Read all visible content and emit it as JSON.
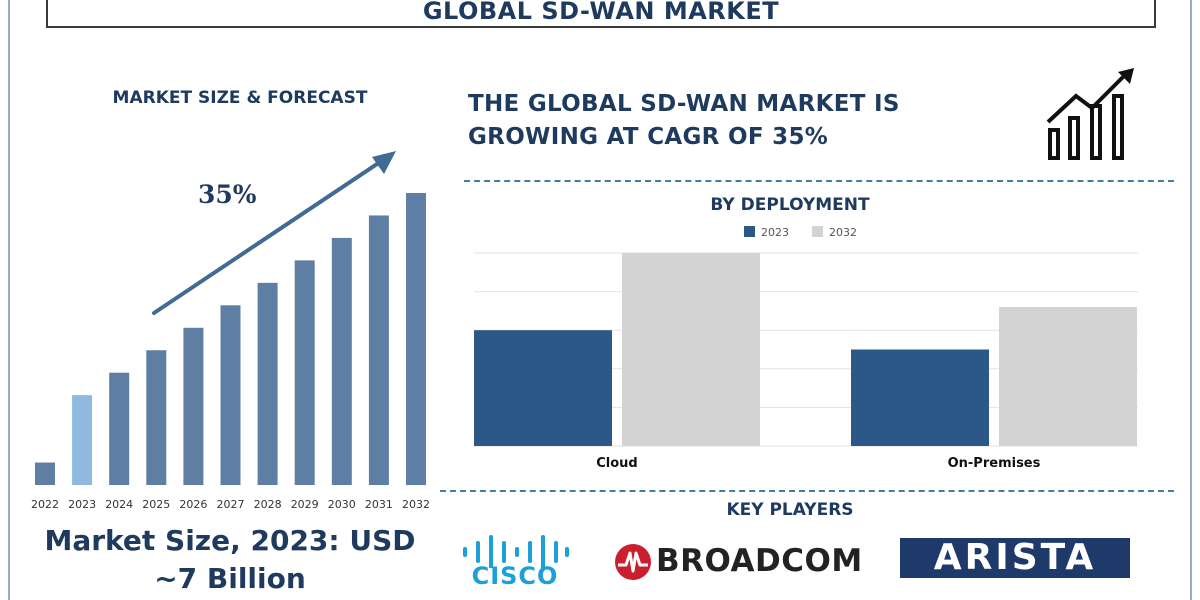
{
  "title": "GLOBAL SD-WAN MARKET",
  "forecast": {
    "title": "MARKET SIZE & FORECAST",
    "cagr_label": "35%",
    "market_size_line1": "Market Size, 2023: USD",
    "market_size_line2": "~7 Billion"
  },
  "headline_line1": "THE GLOBAL SD-WAN MARKET IS",
  "headline_line2": "GROWING AT CAGR OF 35%",
  "deployment_title": "BY DEPLOYMENT",
  "key_players_title": "KEY PLAYERS",
  "key_players": [
    "CISCO",
    "BROADCOM",
    "ARISTA"
  ],
  "icons": [
    "growth-chart-icon",
    "broadcom-logo-icon",
    "cisco-logo-icon"
  ],
  "colors": {
    "dark_blue": "#2b5887",
    "steel_blue": "#5e7fa3",
    "highlight_blue": "#8fb9de",
    "light_gray": "#d3d3d3",
    "navy_text": "#1f3a5f"
  },
  "chart_data": [
    {
      "type": "bar",
      "categories": [
        "2022",
        "2023",
        "2024",
        "2025",
        "2026",
        "2027",
        "2028",
        "2029",
        "2030",
        "2031",
        "2032"
      ],
      "values": [
        1,
        4,
        5,
        6,
        7,
        8,
        9,
        10,
        11,
        12,
        13
      ],
      "highlight_category": "2023",
      "annotation": "35%",
      "grid": false
    },
    {
      "type": "bar",
      "title": "BY DEPLOYMENT",
      "categories": [
        "Cloud",
        "On-Premises"
      ],
      "series": [
        {
          "name": "2023",
          "values": [
            3,
            2.5
          ]
        },
        {
          "name": "2032",
          "values": [
            5,
            3.6
          ]
        }
      ],
      "ylim": [
        0,
        5
      ],
      "grid": true,
      "legend": "top"
    }
  ]
}
